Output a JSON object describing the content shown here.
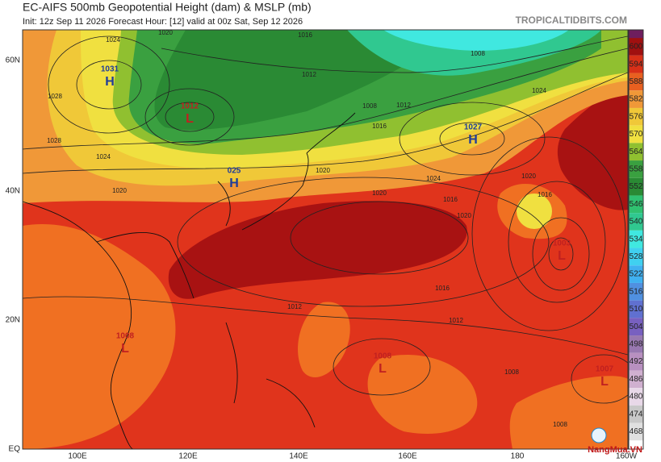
{
  "header": {
    "title": "EC-AIFS 500mb Geopotential Height (dam) & MSLP (mb)",
    "subtitle": "Init: 12z Sep 11 2026   Forecast Hour: [12]   valid at 00z Sat, Sep 12 2026",
    "site": "TROPICALTIDBITS.COM"
  },
  "axes": {
    "lat_labels": [
      "60N",
      "40N",
      "20N",
      "EQ"
    ],
    "lon_labels": [
      "100E",
      "120E",
      "140E",
      "160E",
      "180",
      "160W"
    ]
  },
  "centers": [
    {
      "type": "H",
      "pressure": "1031"
    },
    {
      "type": "L",
      "pressure": "1012"
    },
    {
      "type": "H",
      "pressure": "025"
    },
    {
      "type": "H",
      "pressure": "1027"
    },
    {
      "type": "L",
      "pressure": "1003"
    },
    {
      "type": "L",
      "pressure": "1008"
    },
    {
      "type": "L",
      "pressure": "1008"
    },
    {
      "type": "L",
      "pressure": "1007"
    }
  ],
  "isobar_labels": [
    "1020",
    "1024",
    "1016",
    "1008",
    "1012",
    "1028",
    "1024",
    "1028",
    "1020",
    "1012",
    "1016",
    "1008",
    "1020",
    "1024",
    "1016",
    "1020",
    "1024",
    "1020",
    "1020",
    "1016",
    "1016",
    "1012",
    "1012",
    "1008",
    "1008"
  ],
  "colorbar": {
    "top_color": "#6e1e5e",
    "bands": [
      {
        "label": 600,
        "color": "#a01010"
      },
      {
        "label": 594,
        "color": "#d83018"
      },
      {
        "label": 588,
        "color": "#e86020"
      },
      {
        "label": 582,
        "color": "#f09838"
      },
      {
        "label": 576,
        "color": "#f0c838"
      },
      {
        "label": 570,
        "color": "#f0e040"
      },
      {
        "label": 564,
        "color": "#90c030"
      },
      {
        "label": 558,
        "color": "#3aa040"
      },
      {
        "label": 552,
        "color": "#2a8a34"
      },
      {
        "label": 546,
        "color": "#30c070"
      },
      {
        "label": 540,
        "color": "#30c890"
      },
      {
        "label": 534,
        "color": "#40e8e0"
      },
      {
        "label": 528,
        "color": "#40d0f0"
      },
      {
        "label": 522,
        "color": "#40b0f0"
      },
      {
        "label": 516,
        "color": "#5090e0"
      },
      {
        "label": 510,
        "color": "#6070d0"
      },
      {
        "label": 504,
        "color": "#7860c0"
      },
      {
        "label": 498,
        "color": "#9878b0"
      },
      {
        "label": 492,
        "color": "#b890c0"
      },
      {
        "label": 486,
        "color": "#d0b0d0"
      },
      {
        "label": 480,
        "color": "#e8d8e8"
      },
      {
        "label": 474,
        "color": "#c8c8c8"
      },
      {
        "label": 468,
        "color": "#e0e0e0"
      }
    ]
  },
  "watermark": "NangMua.VN"
}
